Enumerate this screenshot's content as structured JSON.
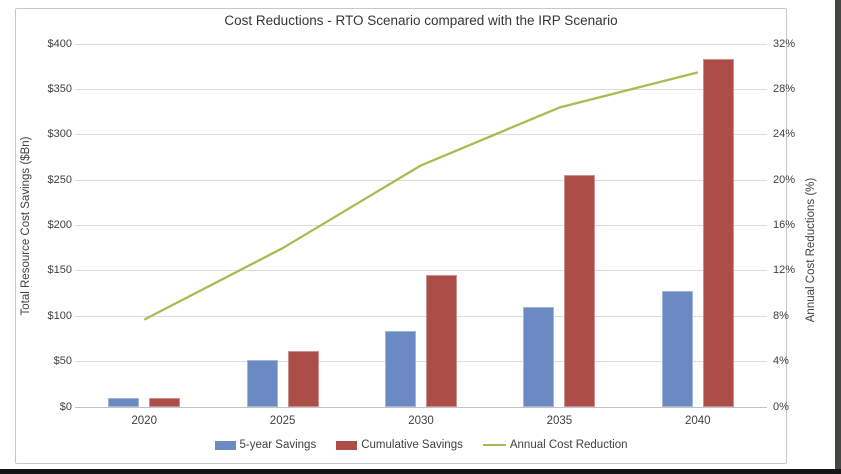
{
  "chart_data": {
    "type": "combo-bar-line",
    "title": "Cost Reductions - RTO Scenario compared with the IRP Scenario",
    "categories": [
      "2020",
      "2025",
      "2030",
      "2035",
      "2040"
    ],
    "series": [
      {
        "name": "5-year Savings",
        "type": "bar",
        "axis": "left",
        "color": "#6B8AC4",
        "values": [
          10,
          52,
          84,
          110,
          128
        ]
      },
      {
        "name": "Cumulative Savings",
        "type": "bar",
        "axis": "left",
        "color": "#AC4D47",
        "values": [
          10,
          62,
          146,
          256,
          384
        ]
      },
      {
        "name": "Annual Cost Reduction",
        "type": "line",
        "axis": "right",
        "color": "#A4BD52",
        "values": [
          7.7,
          14.0,
          21.3,
          26.4,
          29.5
        ]
      }
    ],
    "axes": {
      "left": {
        "label": "Total Resource Cost Savings ($Bn)",
        "min": 0,
        "max": 400,
        "tick_step": 50,
        "tick_labels": [
          "$0",
          "$50",
          "$100",
          "$150",
          "$200",
          "$250",
          "$300",
          "$350",
          "$400"
        ]
      },
      "right": {
        "label": "Annual Cost Reductions (%)",
        "min": 0,
        "max": 32,
        "tick_step": 4,
        "tick_labels": [
          "0%",
          "4%",
          "8%",
          "12%",
          "16%",
          "20%",
          "24%",
          "28%",
          "32%"
        ]
      }
    },
    "legend": {
      "position": "bottom",
      "entries": [
        "5-year Savings",
        "Cumulative Savings",
        "Annual Cost Reduction"
      ]
    },
    "grid": true,
    "styling": {
      "gridline_color": "#DCDCDC",
      "baseline_color": "#C2C2C2",
      "text_color": "#404040",
      "title_color": "#353535",
      "frame_border_color": "#C7C7C7",
      "background": "#FFFFFF"
    }
  }
}
